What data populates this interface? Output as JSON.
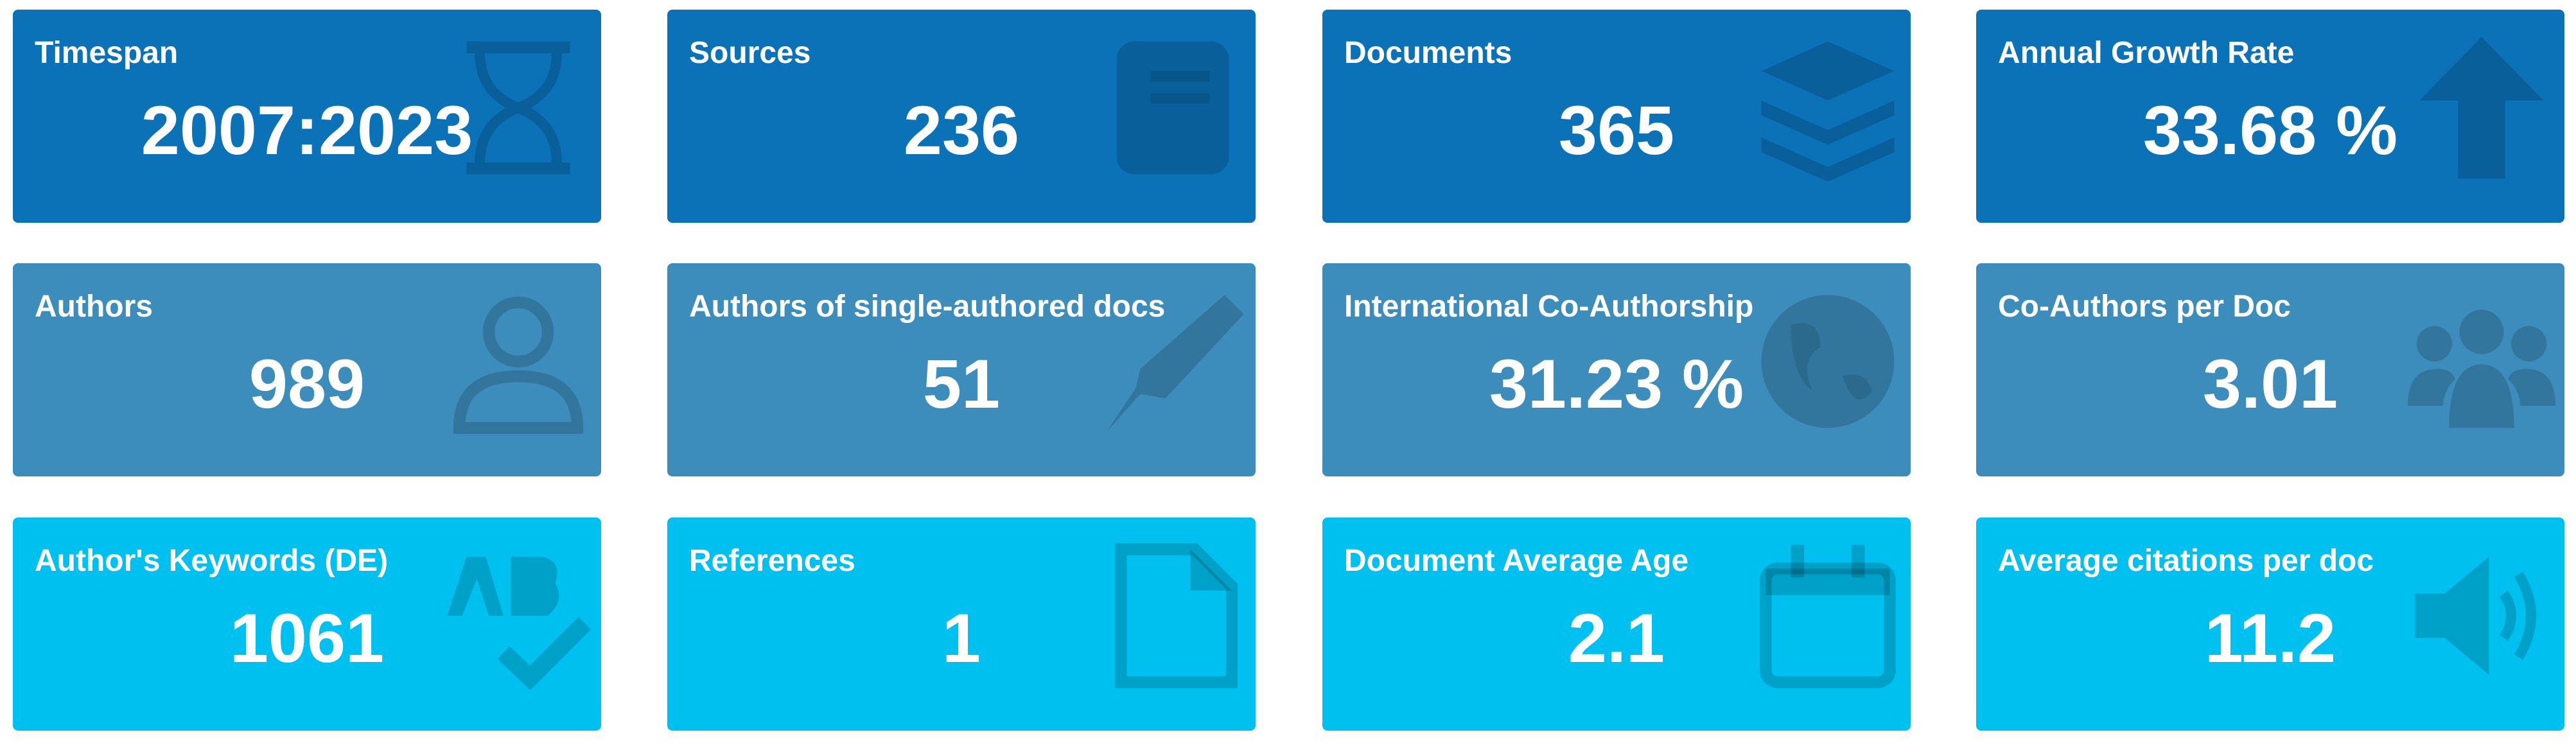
{
  "cards": [
    {
      "title": "Timespan",
      "value": "2007:2023"
    },
    {
      "title": "Sources",
      "value": "236"
    },
    {
      "title": "Documents",
      "value": "365"
    },
    {
      "title": "Annual Growth Rate",
      "value": "33.68 %"
    },
    {
      "title": "Authors",
      "value": "989"
    },
    {
      "title": "Authors of single-authored docs",
      "value": "51"
    },
    {
      "title": "International Co-Authorship",
      "value": "31.23 %"
    },
    {
      "title": "Co-Authors per Doc",
      "value": "3.01"
    },
    {
      "title": "Author's Keywords (DE)",
      "value": "1061"
    },
    {
      "title": "References",
      "value": "1"
    },
    {
      "title": "Document Average Age",
      "value": "2.1"
    },
    {
      "title": "Average citations per doc",
      "value": "11.2"
    }
  ]
}
